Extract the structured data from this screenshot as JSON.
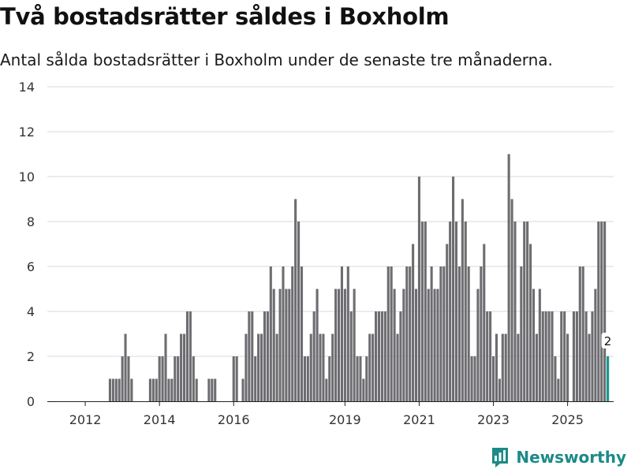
{
  "header": {
    "title": "Två bostadsrätter såldes i Boxholm",
    "subtitle": "Antal sålda bostadsrätter i Boxholm under de senaste tre månaderna."
  },
  "brand": {
    "name": "Newsworthy",
    "color": "#1c8a87"
  },
  "chart_data": {
    "type": "bar",
    "title": "Två bostadsrätter såldes i Boxholm",
    "subtitle": "Antal sålda bostadsrätter i Boxholm under de senaste tre månaderna.",
    "xlabel": "",
    "ylabel": "",
    "ylim": [
      0,
      14
    ],
    "y_ticks": [
      0,
      2,
      4,
      6,
      8,
      10,
      12,
      14
    ],
    "grid": true,
    "bar_color": "#6d6c70",
    "highlight_color": "#159a94",
    "series_start": "2011-01",
    "x_ticks": [
      {
        "label": "2012",
        "index": 12
      },
      {
        "label": "2014",
        "index": 36
      },
      {
        "label": "2016",
        "index": 60
      },
      {
        "label": "2019",
        "index": 96
      },
      {
        "label": "2021",
        "index": 120
      },
      {
        "label": "2023",
        "index": 144
      },
      {
        "label": "2025",
        "index": 168
      }
    ],
    "values": [
      0,
      0,
      0,
      0,
      0,
      0,
      0,
      0,
      0,
      0,
      0,
      0,
      0,
      0,
      0,
      0,
      0,
      0,
      0,
      0,
      1,
      1,
      1,
      1,
      2,
      3,
      2,
      1,
      0,
      0,
      0,
      0,
      0,
      1,
      1,
      1,
      2,
      2,
      3,
      1,
      1,
      2,
      2,
      3,
      3,
      4,
      4,
      2,
      1,
      0,
      0,
      0,
      1,
      1,
      1,
      0,
      0,
      0,
      0,
      0,
      2,
      2,
      0,
      1,
      3,
      4,
      4,
      2,
      3,
      3,
      4,
      4,
      6,
      5,
      3,
      5,
      6,
      5,
      5,
      6,
      9,
      8,
      6,
      2,
      2,
      3,
      4,
      5,
      3,
      3,
      1,
      2,
      3,
      5,
      5,
      6,
      5,
      6,
      4,
      5,
      2,
      2,
      1,
      2,
      3,
      3,
      4,
      4,
      4,
      4,
      6,
      6,
      5,
      3,
      4,
      5,
      6,
      6,
      7,
      5,
      10,
      8,
      8,
      5,
      6,
      5,
      5,
      6,
      6,
      7,
      8,
      10,
      8,
      6,
      9,
      8,
      6,
      2,
      2,
      5,
      6,
      7,
      4,
      4,
      2,
      3,
      1,
      3,
      3,
      11,
      9,
      8,
      3,
      6,
      8,
      8,
      7,
      5,
      3,
      5,
      4,
      4,
      4,
      4,
      2,
      1,
      4,
      4,
      3,
      0,
      4,
      4,
      6,
      6,
      4,
      3,
      4,
      5,
      8,
      8,
      8,
      2
    ],
    "highlight": {
      "index": 181,
      "value": 2,
      "label": "2"
    }
  }
}
